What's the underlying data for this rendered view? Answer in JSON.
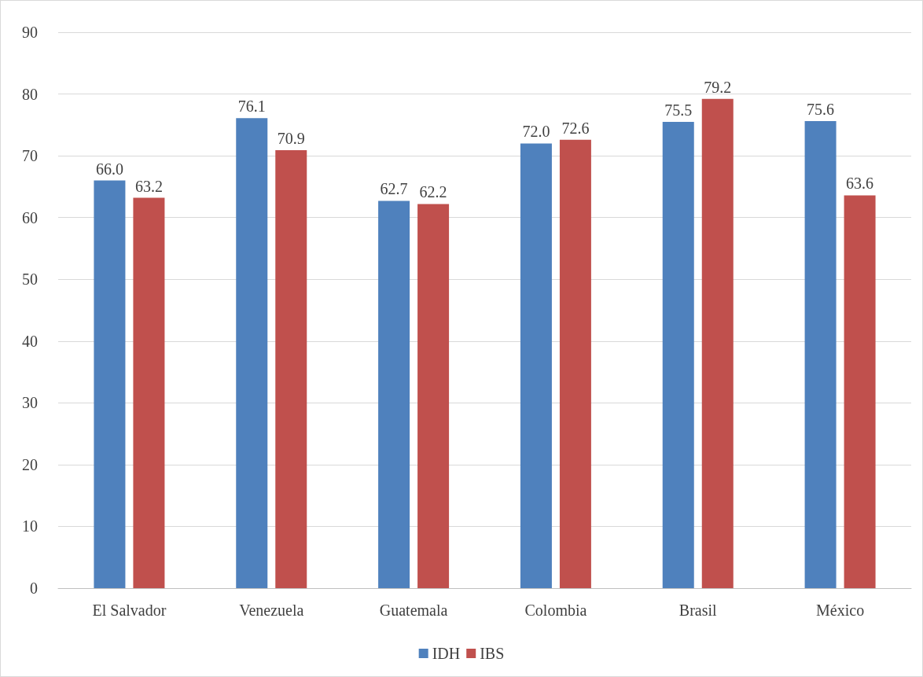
{
  "chart_data": {
    "type": "bar",
    "categories": [
      "El Salvador",
      "Venezuela",
      "Guatemala",
      "Colombia",
      "Brasil",
      "México"
    ],
    "series": [
      {
        "name": "IDH",
        "color": "#4f81bd",
        "values": [
          66.0,
          76.1,
          62.7,
          72.0,
          75.5,
          75.6
        ],
        "value_labels": [
          "66.0",
          "76.1",
          "62.7",
          "72.0",
          "75.5",
          "75.6"
        ]
      },
      {
        "name": "IBS",
        "color": "#c0504d",
        "values": [
          63.2,
          70.9,
          62.2,
          72.6,
          79.2,
          63.6
        ],
        "value_labels": [
          "63.2",
          "70.9",
          "62.2",
          "72.6",
          "79.2",
          "63.6"
        ]
      }
    ],
    "ylim": [
      0,
      90
    ],
    "yticks": [
      0,
      10,
      20,
      30,
      40,
      50,
      60,
      70,
      80,
      90
    ],
    "grid": "y",
    "legend": "bottom"
  }
}
